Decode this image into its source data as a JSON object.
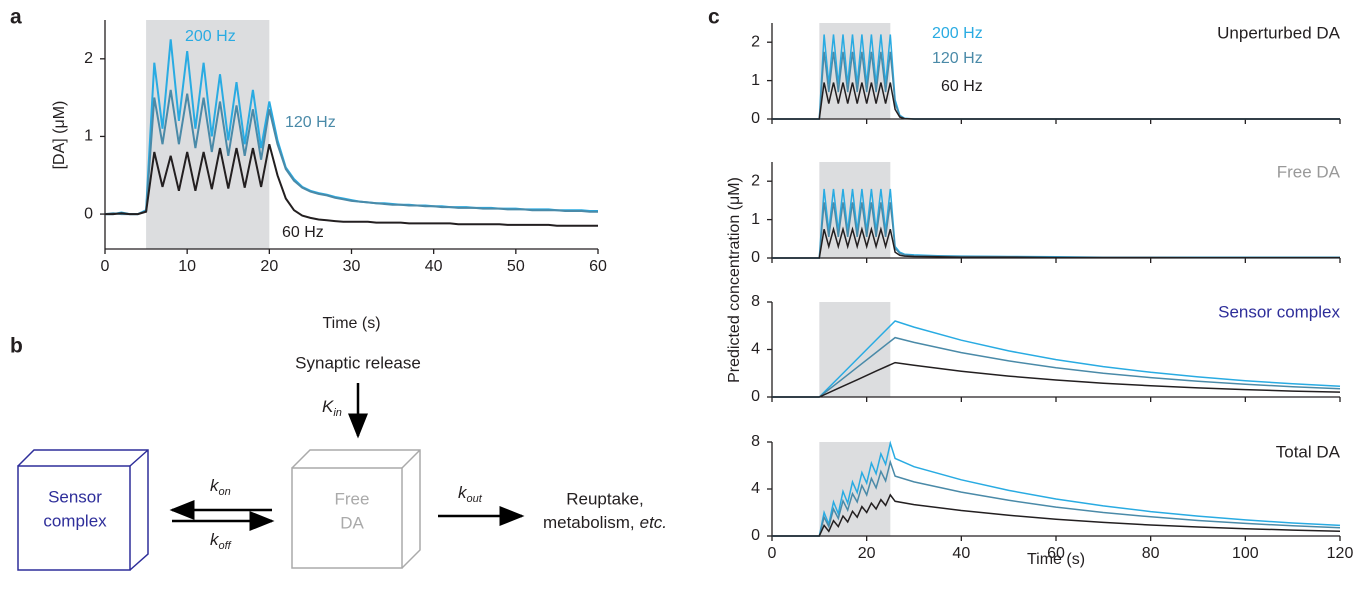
{
  "panel_labels": [
    "a",
    "b",
    "c"
  ],
  "shared_ylabel": "Predicted concentration (μM)",
  "chart_data": [
    {
      "type": "line",
      "ylabel": "[DA] (μM)",
      "xlabel": "Time (s)",
      "x": [
        0,
        1,
        2,
        3,
        4,
        5,
        6,
        7,
        8,
        9,
        10,
        11,
        12,
        13,
        14,
        15,
        16,
        17,
        18,
        19,
        20,
        21,
        22,
        23,
        24,
        25,
        26,
        27,
        28,
        29,
        30,
        31,
        32,
        33,
        34,
        35,
        36,
        37,
        38,
        39,
        40,
        41,
        42,
        43,
        44,
        45,
        46,
        47,
        48,
        49,
        50,
        51,
        52,
        53,
        54,
        55,
        56,
        57,
        58,
        59,
        60
      ],
      "xlim": [
        0,
        60
      ],
      "ylim": [
        -0.45,
        2.5
      ],
      "xticks": [
        0,
        10,
        20,
        30,
        40,
        50,
        60
      ],
      "yticks": [
        0,
        1,
        2
      ],
      "shade": [
        5,
        20
      ],
      "xtick_labels": true,
      "series": [
        {
          "name": "200 Hz",
          "color": "#29abe2",
          "values": [
            0,
            0,
            0.02,
            0,
            0,
            0.05,
            1.95,
            1.1,
            2.25,
            1.2,
            2.1,
            1.1,
            1.95,
            1.0,
            1.8,
            0.95,
            1.7,
            0.9,
            1.6,
            0.85,
            1.45,
            0.95,
            0.6,
            0.45,
            0.35,
            0.3,
            0.27,
            0.25,
            0.22,
            0.2,
            0.18,
            0.16,
            0.15,
            0.14,
            0.14,
            0.13,
            0.12,
            0.12,
            0.11,
            0.11,
            0.1,
            0.1,
            0.09,
            0.09,
            0.09,
            0.08,
            0.08,
            0.08,
            0.07,
            0.07,
            0.07,
            0.06,
            0.06,
            0.06,
            0.06,
            0.05,
            0.05,
            0.05,
            0.05,
            0.04,
            0.04
          ]
        },
        {
          "name": "120 Hz",
          "color": "#4a8aa8",
          "values": [
            0,
            0.01,
            0,
            0,
            0,
            0.04,
            1.5,
            0.9,
            1.6,
            0.9,
            1.55,
            0.85,
            1.5,
            0.8,
            1.45,
            0.75,
            1.4,
            0.75,
            1.35,
            0.7,
            1.35,
            0.9,
            0.58,
            0.43,
            0.34,
            0.29,
            0.26,
            0.24,
            0.21,
            0.19,
            0.17,
            0.16,
            0.15,
            0.14,
            0.13,
            0.12,
            0.12,
            0.11,
            0.11,
            0.1,
            0.1,
            0.09,
            0.09,
            0.08,
            0.08,
            0.08,
            0.07,
            0.07,
            0.07,
            0.06,
            0.06,
            0.06,
            0.05,
            0.05,
            0.05,
            0.05,
            0.04,
            0.04,
            0.04,
            0.03,
            0.03
          ]
        },
        {
          "name": "60 Hz",
          "color": "#231f20",
          "values": [
            0,
            0,
            0.01,
            0,
            0,
            0.03,
            0.8,
            0.35,
            0.75,
            0.3,
            0.8,
            0.3,
            0.8,
            0.32,
            0.85,
            0.33,
            0.85,
            0.34,
            0.85,
            0.35,
            0.9,
            0.5,
            0.2,
            0.05,
            -0.02,
            -0.05,
            -0.07,
            -0.08,
            -0.09,
            -0.1,
            -0.1,
            -0.1,
            -0.1,
            -0.11,
            -0.11,
            -0.11,
            -0.11,
            -0.12,
            -0.12,
            -0.12,
            -0.12,
            -0.12,
            -0.12,
            -0.13,
            -0.13,
            -0.13,
            -0.13,
            -0.13,
            -0.13,
            -0.14,
            -0.14,
            -0.14,
            -0.14,
            -0.14,
            -0.14,
            -0.15,
            -0.15,
            -0.15,
            -0.15,
            -0.15,
            -0.15
          ]
        }
      ]
    },
    {
      "type": "line",
      "title": "Unperturbed DA",
      "title_color": "#231f20",
      "x": [
        0,
        10,
        11,
        12,
        13,
        14,
        15,
        16,
        17,
        18,
        19,
        20,
        21,
        22,
        23,
        24,
        25,
        26,
        27,
        28,
        30,
        35,
        40,
        50,
        60,
        70,
        80,
        90,
        100,
        110,
        120
      ],
      "xlim": [
        0,
        120
      ],
      "ylim": [
        0,
        2.5
      ],
      "xticks": [
        0,
        20,
        40,
        60,
        80,
        100,
        120
      ],
      "yticks": [
        0,
        1,
        2
      ],
      "shade": [
        10,
        25
      ],
      "xtick_labels": false,
      "series": [
        {
          "name": "200 Hz",
          "color": "#29abe2",
          "values": [
            0,
            0,
            2.2,
            0.9,
            2.2,
            0.9,
            2.2,
            0.9,
            2.2,
            0.9,
            2.2,
            0.9,
            2.2,
            0.9,
            2.2,
            0.9,
            2.2,
            0.5,
            0.1,
            0.02,
            0,
            0,
            0,
            0,
            0,
            0,
            0,
            0,
            0,
            0,
            0
          ]
        },
        {
          "name": "120 Hz",
          "color": "#4a8aa8",
          "values": [
            0,
            0,
            1.75,
            0.7,
            1.75,
            0.7,
            1.75,
            0.7,
            1.75,
            0.7,
            1.75,
            0.7,
            1.75,
            0.7,
            1.75,
            0.7,
            1.75,
            0.4,
            0.08,
            0.01,
            0,
            0,
            0,
            0,
            0,
            0,
            0,
            0,
            0,
            0,
            0
          ]
        },
        {
          "name": "60 Hz",
          "color": "#231f20",
          "values": [
            0,
            0,
            0.95,
            0.4,
            0.95,
            0.4,
            0.95,
            0.4,
            0.95,
            0.4,
            0.95,
            0.4,
            0.95,
            0.4,
            0.95,
            0.4,
            0.95,
            0.25,
            0.05,
            0.01,
            0,
            0,
            0,
            0,
            0,
            0,
            0,
            0,
            0,
            0,
            0
          ]
        }
      ]
    },
    {
      "type": "line",
      "title": "Free DA",
      "title_color": "#999999",
      "x": [
        0,
        10,
        11,
        12,
        13,
        14,
        15,
        16,
        17,
        18,
        19,
        20,
        21,
        22,
        23,
        24,
        25,
        26,
        27,
        28,
        30,
        35,
        40,
        50,
        60,
        70,
        80,
        90,
        100,
        110,
        120
      ],
      "xlim": [
        0,
        120
      ],
      "ylim": [
        0,
        2.5
      ],
      "xticks": [
        0,
        20,
        40,
        60,
        80,
        100,
        120
      ],
      "yticks": [
        0,
        1,
        2
      ],
      "shade": [
        10,
        25
      ],
      "xtick_labels": false,
      "series": [
        {
          "color": "#29abe2",
          "values": [
            0,
            0,
            1.8,
            0.7,
            1.8,
            0.7,
            1.8,
            0.7,
            1.8,
            0.7,
            1.8,
            0.7,
            1.8,
            0.7,
            1.8,
            0.7,
            1.8,
            0.3,
            0.15,
            0.1,
            0.08,
            0.06,
            0.05,
            0.04,
            0.03,
            0.02,
            0.02,
            0.02,
            0.02,
            0.02,
            0.02
          ]
        },
        {
          "color": "#4a8aa8",
          "values": [
            0,
            0,
            1.45,
            0.55,
            1.45,
            0.55,
            1.45,
            0.55,
            1.45,
            0.55,
            1.45,
            0.55,
            1.45,
            0.55,
            1.45,
            0.55,
            1.45,
            0.25,
            0.12,
            0.08,
            0.06,
            0.05,
            0.04,
            0.03,
            0.02,
            0.02,
            0.02,
            0.01,
            0.01,
            0.01,
            0.01
          ]
        },
        {
          "color": "#231f20",
          "values": [
            0,
            0,
            0.75,
            0.3,
            0.75,
            0.3,
            0.75,
            0.3,
            0.75,
            0.3,
            0.75,
            0.3,
            0.75,
            0.3,
            0.75,
            0.3,
            0.75,
            0.15,
            0.07,
            0.05,
            0.04,
            0.03,
            0.02,
            0.02,
            0.01,
            0.01,
            0.01,
            0.01,
            0.01,
            0.01,
            0.01
          ]
        }
      ]
    },
    {
      "type": "line",
      "title": "Sensor complex",
      "title_color": "#2e2e9a",
      "x": [
        0,
        10,
        14,
        18,
        22,
        26,
        30,
        40,
        50,
        60,
        70,
        80,
        90,
        100,
        110,
        120
      ],
      "xlim": [
        0,
        120
      ],
      "ylim": [
        0,
        8
      ],
      "xticks": [
        0,
        20,
        40,
        60,
        80,
        100,
        120
      ],
      "yticks": [
        0,
        4,
        8
      ],
      "shade": [
        10,
        25
      ],
      "xtick_labels": false,
      "series": [
        {
          "color": "#29abe2",
          "values": [
            0,
            0,
            1.6,
            3.2,
            4.8,
            6.4,
            5.89,
            4.78,
            3.88,
            3.15,
            2.56,
            2.08,
            1.69,
            1.37,
            1.11,
            0.9
          ]
        },
        {
          "color": "#4a8aa8",
          "values": [
            0,
            0,
            1.25,
            2.5,
            3.75,
            5.0,
            4.6,
            3.74,
            3.04,
            2.46,
            2.0,
            1.63,
            1.32,
            1.07,
            0.87,
            0.7
          ]
        },
        {
          "color": "#231f20",
          "values": [
            0,
            0,
            0.73,
            1.45,
            2.18,
            2.9,
            2.67,
            2.17,
            1.76,
            1.43,
            1.16,
            0.94,
            0.77,
            0.62,
            0.5,
            0.41
          ]
        }
      ]
    },
    {
      "type": "line",
      "title": "Total DA",
      "title_color": "#231f20",
      "xlabel": "Time (s)",
      "x": [
        0,
        10,
        11,
        12,
        13,
        14,
        15,
        16,
        17,
        18,
        19,
        20,
        21,
        22,
        23,
        24,
        25,
        26,
        30,
        40,
        50,
        60,
        70,
        80,
        90,
        100,
        110,
        120
      ],
      "xlim": [
        0,
        120
      ],
      "ylim": [
        0,
        8
      ],
      "xticks": [
        0,
        20,
        40,
        60,
        80,
        100,
        120
      ],
      "yticks": [
        0,
        4,
        8
      ],
      "shade": [
        10,
        25
      ],
      "xtick_labels": true,
      "series": [
        {
          "color": "#29abe2",
          "values": [
            0,
            0,
            2.0,
            1.0,
            2.9,
            1.9,
            3.8,
            2.8,
            4.6,
            3.7,
            5.4,
            4.5,
            6.2,
            5.3,
            7.0,
            6.1,
            7.9,
            6.6,
            5.9,
            4.78,
            3.88,
            3.15,
            2.56,
            2.08,
            1.69,
            1.37,
            1.11,
            0.9
          ]
        },
        {
          "color": "#4a8aa8",
          "values": [
            0,
            0,
            1.6,
            0.8,
            2.3,
            1.5,
            3.0,
            2.2,
            3.6,
            2.9,
            4.3,
            3.5,
            4.9,
            4.1,
            5.5,
            4.7,
            6.3,
            5.1,
            4.6,
            3.74,
            3.04,
            2.46,
            2.0,
            1.63,
            1.32,
            1.07,
            0.87,
            0.7
          ]
        },
        {
          "color": "#231f20",
          "values": [
            0,
            0,
            0.9,
            0.4,
            1.3,
            0.8,
            1.7,
            1.2,
            2.1,
            1.6,
            2.5,
            2.0,
            2.8,
            2.3,
            3.1,
            2.6,
            3.5,
            2.95,
            2.67,
            2.17,
            1.76,
            1.43,
            1.16,
            0.94,
            0.77,
            0.62,
            0.5,
            0.41
          ]
        }
      ]
    }
  ],
  "diagram": {
    "synaptic_release": "Synaptic release",
    "k_in": {
      "symbol": "K",
      "subscript": "in"
    },
    "k_on": {
      "symbol": "k",
      "subscript": "on"
    },
    "k_off": {
      "symbol": "k",
      "subscript": "off"
    },
    "k_out": {
      "symbol": "k",
      "subscript": "out"
    },
    "sensor_complex": [
      "Sensor",
      "complex"
    ],
    "free_da": [
      "Free",
      "DA"
    ],
    "reuptake": [
      "Reuptake,",
      "metabolism,",
      "etc."
    ]
  }
}
